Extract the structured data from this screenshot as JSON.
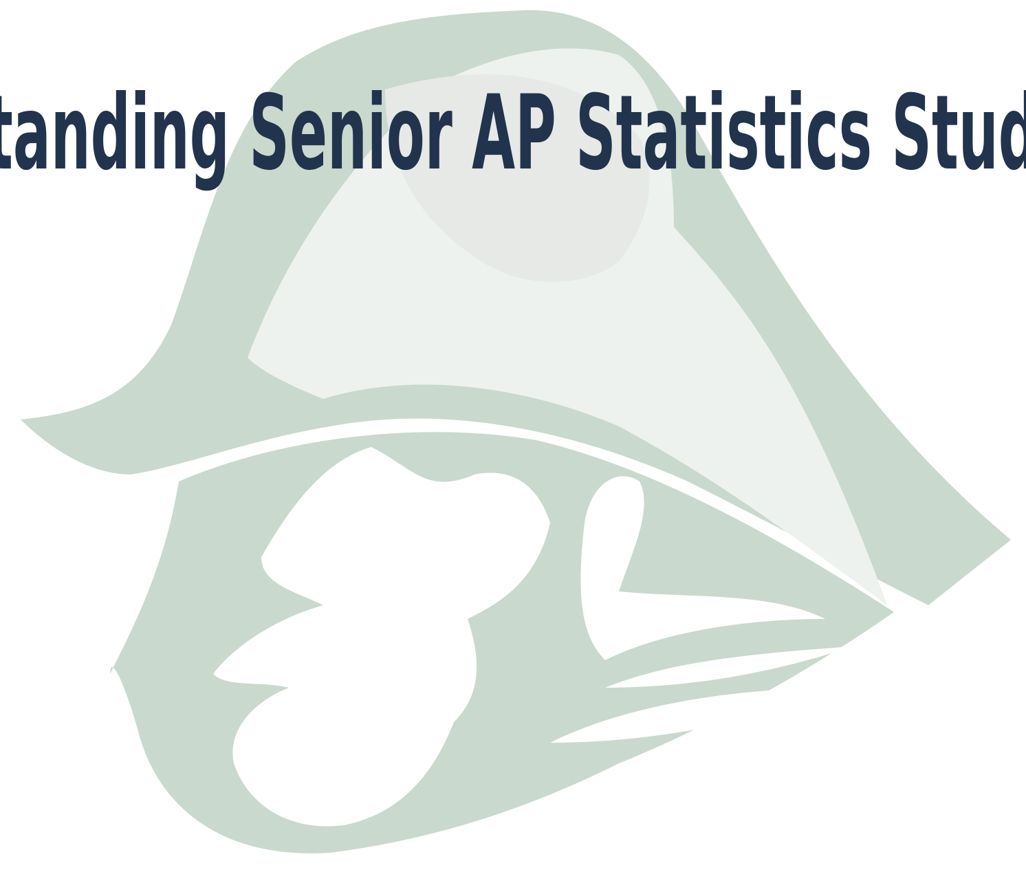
{
  "header": {
    "title": "tanding Senior AP Statistics Stud"
  }
}
